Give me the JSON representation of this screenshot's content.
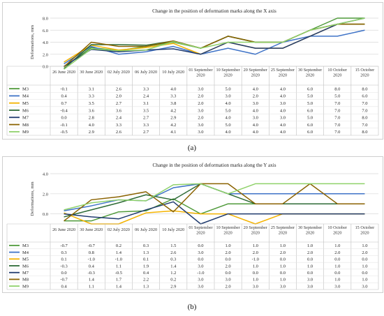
{
  "captions": [
    "(a)",
    "(b)"
  ],
  "chart_data": [
    {
      "type": "line",
      "title": "Change in the position of deformation marks along the X axis",
      "ylabel": "Deformations, mm",
      "xlabel": "",
      "ylim": [
        0,
        8
      ],
      "yticks": [
        0,
        2,
        4,
        6,
        8
      ],
      "ytick_labels": [
        "0.0",
        "2.0",
        "4.0",
        "6.0",
        "8.0"
      ],
      "grid": true,
      "legend": "table-below",
      "categories": [
        "26 June 2020",
        "30 June 2020",
        "02 July 2020",
        "06 July 2020",
        "10 July 2020",
        "01 September 2020",
        "10 September 2020",
        "20 September 2020",
        "25 September 2020",
        "30 September 2020",
        "10 October 2020",
        "15 October 2020"
      ],
      "series": [
        {
          "name": "M3",
          "color": "#4f9a3a",
          "values": [
            -0.1,
            3.1,
            2.6,
            3.3,
            4.0,
            3.0,
            5.0,
            4.0,
            4.0,
            6.0,
            8.0,
            8.0
          ]
        },
        {
          "name": "M4",
          "color": "#3f73c7",
          "values": [
            0.4,
            3.3,
            2.0,
            2.4,
            3.3,
            2.0,
            3.0,
            2.0,
            4.0,
            5.0,
            5.0,
            6.0
          ]
        },
        {
          "name": "M5",
          "color": "#f4b300",
          "values": [
            0.7,
            3.5,
            2.7,
            3.1,
            3.8,
            2.0,
            4.0,
            3.0,
            3.0,
            5.0,
            7.0,
            7.0
          ]
        },
        {
          "name": "M6",
          "color": "#2d6a35",
          "values": [
            -0.4,
            3.6,
            3.6,
            3.5,
            4.2,
            3.0,
            5.0,
            4.0,
            4.0,
            6.0,
            7.0,
            7.0
          ]
        },
        {
          "name": "M7",
          "color": "#1f3a6e",
          "values": [
            0.0,
            2.8,
            2.4,
            2.7,
            2.9,
            2.0,
            4.0,
            3.0,
            3.0,
            5.0,
            7.0,
            8.0
          ]
        },
        {
          "name": "M8",
          "color": "#8a6200",
          "values": [
            -0.1,
            4.0,
            3.3,
            3.3,
            4.2,
            3.0,
            5.0,
            4.0,
            4.0,
            6.0,
            7.0,
            7.0
          ]
        },
        {
          "name": "M9",
          "color": "#8fd16a",
          "values": [
            -0.5,
            2.9,
            2.6,
            2.7,
            4.1,
            3.0,
            4.0,
            4.0,
            4.0,
            6.0,
            7.0,
            8.0
          ]
        }
      ]
    },
    {
      "type": "line",
      "title": "Change in the position of deformation marks along the Y axis",
      "ylabel": "Deformations, mm",
      "xlabel": "",
      "ylim": [
        -1,
        4
      ],
      "yticks": [
        0,
        2,
        4
      ],
      "ytick_labels": [
        "0.0",
        "2.0",
        "4.0"
      ],
      "grid": true,
      "legend": "table-below",
      "categories": [
        "26 June 2020",
        "30 June 2020",
        "02 July 2020",
        "06 July 2020",
        "10 July 2020",
        "01 September 2020",
        "10 September 2020",
        "20 September 2020",
        "25 September 2020",
        "30 September 2020",
        "10 October 2020",
        "15 October 2020"
      ],
      "series": [
        {
          "name": "M3",
          "color": "#4f9a3a",
          "values": [
            -0.7,
            -0.7,
            0.2,
            0.3,
            1.5,
            0.0,
            1.0,
            1.0,
            1.0,
            1.0,
            1.0,
            1.0
          ]
        },
        {
          "name": "M4",
          "color": "#3f73c7",
          "values": [
            0.3,
            0.8,
            1.4,
            1.3,
            2.6,
            3.0,
            2.0,
            2.0,
            2.0,
            2.0,
            2.0,
            2.0
          ]
        },
        {
          "name": "M5",
          "color": "#f4b300",
          "values": [
            0.1,
            -1.0,
            -1.0,
            0.1,
            0.3,
            0.0,
            0.0,
            -1.0,
            0.0,
            0.0,
            0.0,
            0.0
          ]
        },
        {
          "name": "M6",
          "color": "#2d6a35",
          "values": [
            -0.3,
            0.4,
            1.1,
            1.9,
            1.4,
            3.0,
            2.0,
            1.0,
            1.0,
            1.0,
            1.0,
            1.0
          ]
        },
        {
          "name": "M7",
          "color": "#1f3a6e",
          "values": [
            0.0,
            -0.3,
            -0.5,
            0.4,
            1.2,
            -1.0,
            0.0,
            0.0,
            0.0,
            0.0,
            0.0,
            0.0
          ]
        },
        {
          "name": "M8",
          "color": "#8a6200",
          "values": [
            -0.7,
            1.4,
            1.7,
            2.2,
            0.2,
            3.0,
            3.0,
            1.0,
            1.0,
            3.0,
            1.0,
            1.0
          ]
        },
        {
          "name": "M9",
          "color": "#8fd16a",
          "values": [
            0.4,
            1.1,
            1.4,
            1.3,
            2.9,
            3.0,
            2.0,
            3.0,
            3.0,
            3.0,
            3.0,
            3.0
          ]
        }
      ]
    }
  ]
}
